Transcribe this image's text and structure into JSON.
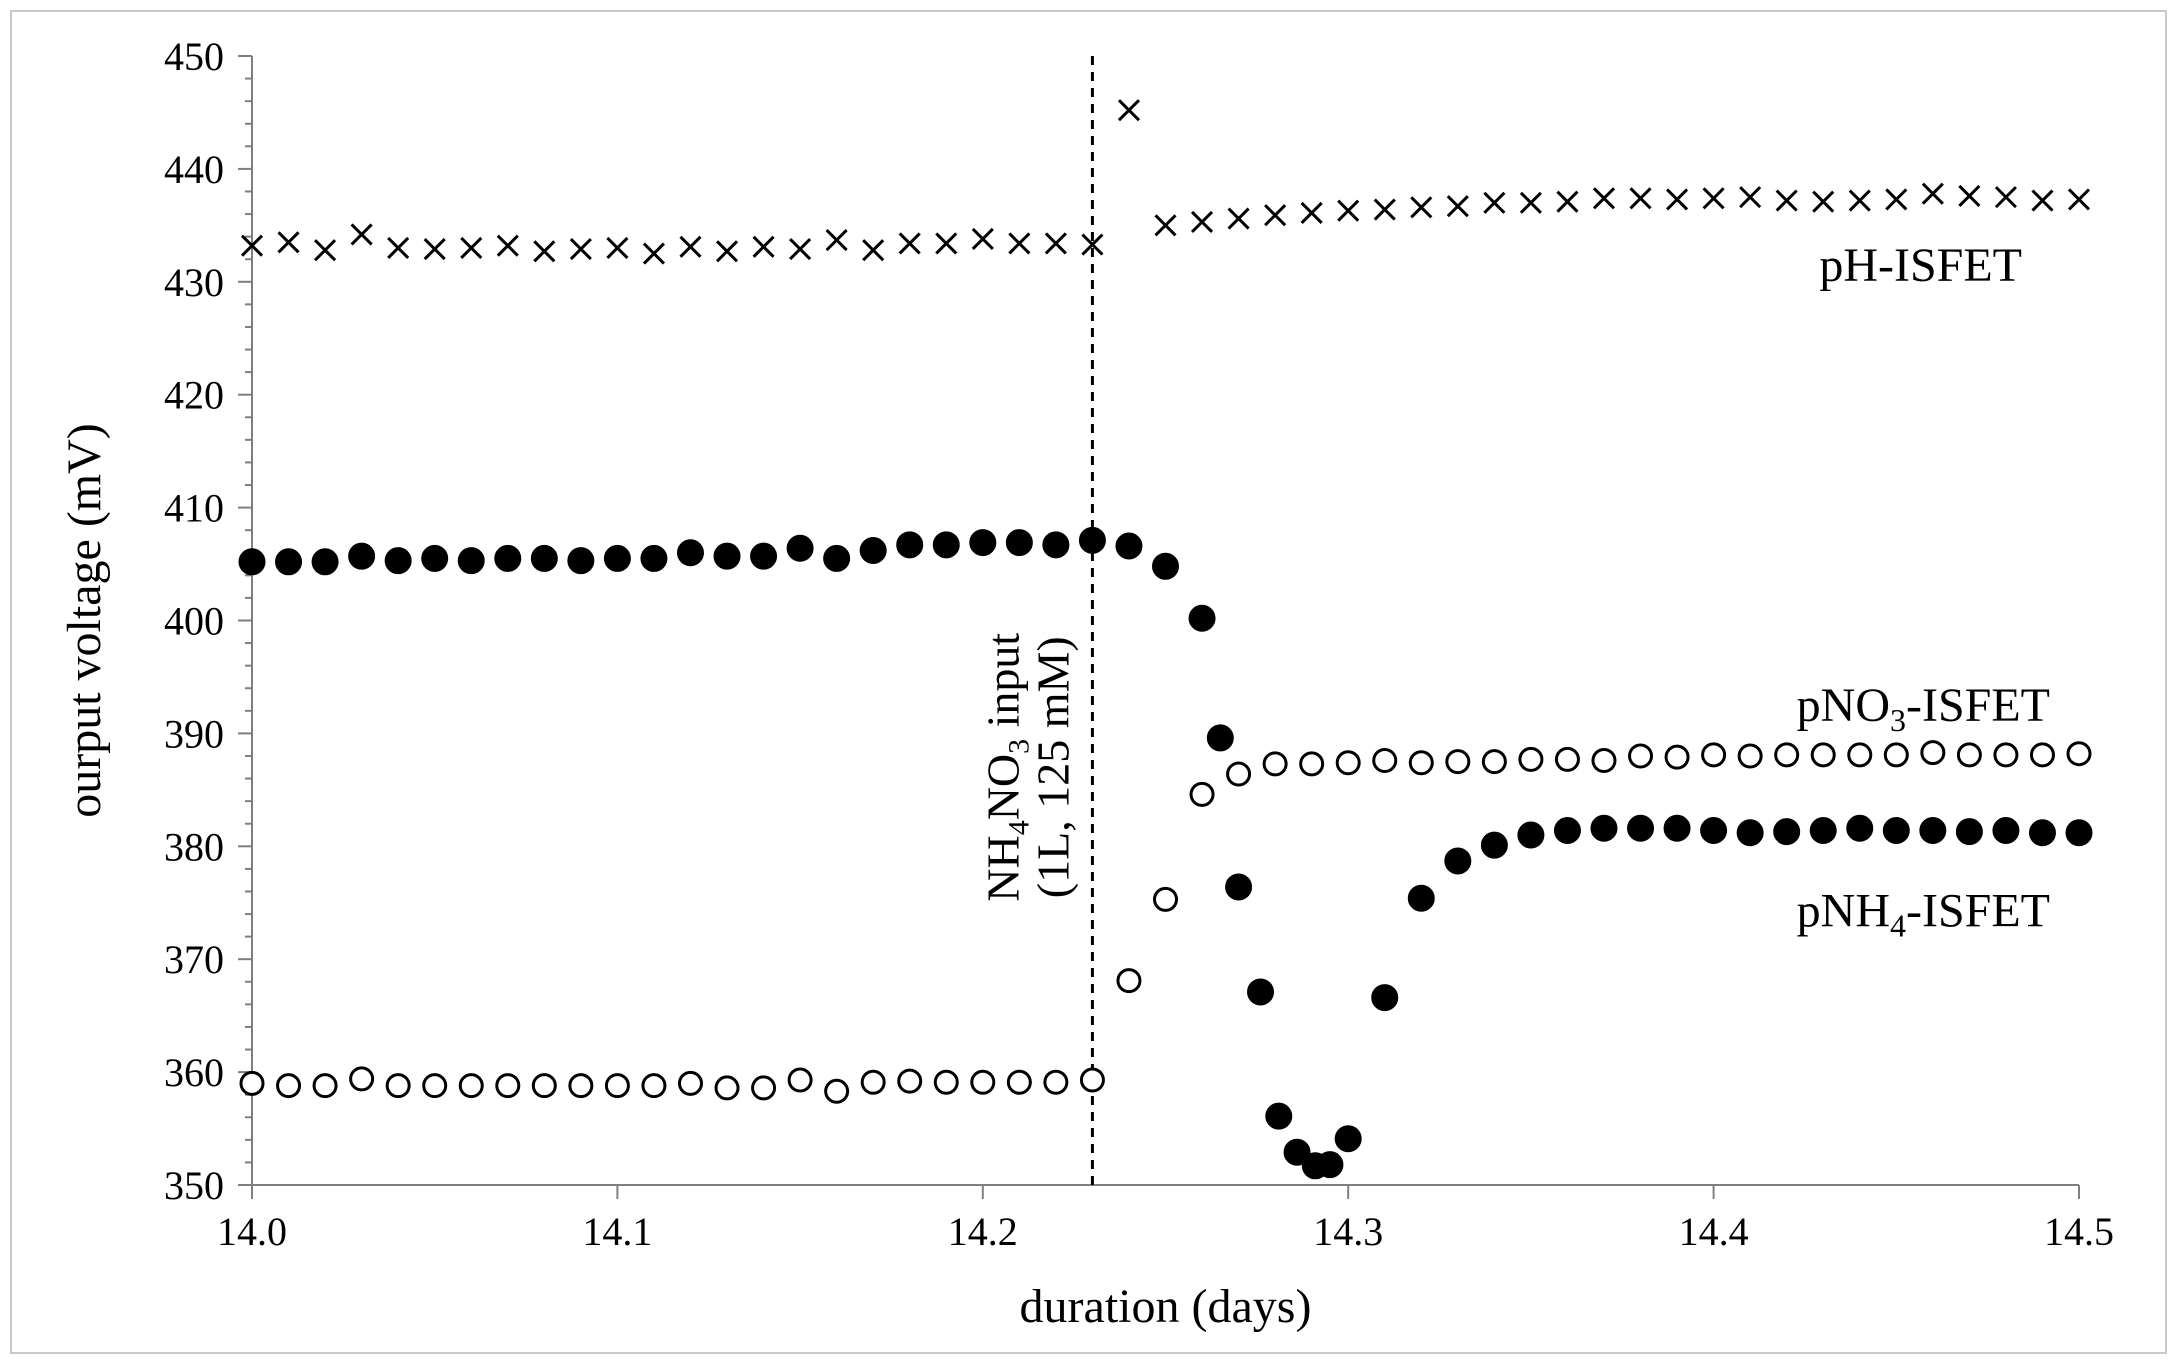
{
  "chart_data": {
    "type": "scatter",
    "title": "",
    "xlabel": "duration (days)",
    "ylabel": "ourput voltage (mV)",
    "xlim": [
      14.0,
      14.5
    ],
    "ylim": [
      350,
      450
    ],
    "x_ticks": [
      "14.0",
      "14.1",
      "14.2",
      "14.3",
      "14.4",
      "14.5"
    ],
    "y_ticks": [
      "350",
      "360",
      "370",
      "380",
      "390",
      "400",
      "410",
      "420",
      "430",
      "440",
      "450"
    ],
    "grid": false,
    "annotation": {
      "x": 14.23,
      "line1_pre": "NH",
      "line1_sub1": "4",
      "line1_mid": "NO",
      "line1_sub2": "3",
      "line1_post": " input",
      "line2": "(1L, 125 mM)"
    },
    "series": [
      {
        "name": "pH-ISFET",
        "label_pre": "pH-ISFET",
        "label_sub": "",
        "label_post": "",
        "marker": "x",
        "x": [
          14.0,
          14.01,
          14.02,
          14.03,
          14.04,
          14.05,
          14.06,
          14.07,
          14.08,
          14.09,
          14.1,
          14.11,
          14.12,
          14.13,
          14.14,
          14.15,
          14.16,
          14.17,
          14.18,
          14.19,
          14.2,
          14.21,
          14.22,
          14.23,
          14.24,
          14.25,
          14.26,
          14.27,
          14.28,
          14.29,
          14.3,
          14.31,
          14.32,
          14.33,
          14.34,
          14.35,
          14.36,
          14.37,
          14.38,
          14.39,
          14.4,
          14.41,
          14.42,
          14.43,
          14.44,
          14.45,
          14.46,
          14.47,
          14.48,
          14.49,
          14.5
        ],
        "y": [
          433.2,
          433.5,
          432.8,
          434.2,
          433.0,
          432.9,
          433.0,
          433.2,
          432.7,
          432.9,
          433.0,
          432.5,
          433.1,
          432.7,
          433.1,
          432.9,
          433.7,
          432.8,
          433.4,
          433.4,
          433.8,
          433.4,
          433.4,
          433.3,
          445.2,
          435.0,
          435.3,
          435.6,
          435.9,
          436.1,
          436.3,
          436.4,
          436.6,
          436.7,
          437.0,
          437.0,
          437.1,
          437.4,
          437.4,
          437.3,
          437.4,
          437.5,
          437.2,
          437.1,
          437.2,
          437.3,
          437.8,
          437.6,
          437.5,
          437.2,
          437.3
        ]
      },
      {
        "name": "pNO3-ISFET",
        "label_pre": "pNO",
        "label_sub": "3",
        "label_post": "-ISFET",
        "marker": "circle-open",
        "x": [
          14.0,
          14.01,
          14.02,
          14.03,
          14.04,
          14.05,
          14.06,
          14.07,
          14.08,
          14.09,
          14.1,
          14.11,
          14.12,
          14.13,
          14.14,
          14.15,
          14.16,
          14.17,
          14.18,
          14.19,
          14.2,
          14.21,
          14.22,
          14.23,
          14.24,
          14.25,
          14.26,
          14.27,
          14.28,
          14.29,
          14.3,
          14.31,
          14.32,
          14.33,
          14.34,
          14.35,
          14.36,
          14.37,
          14.38,
          14.39,
          14.4,
          14.41,
          14.42,
          14.43,
          14.44,
          14.45,
          14.46,
          14.47,
          14.48,
          14.49,
          14.5
        ],
        "y": [
          359.0,
          358.8,
          358.8,
          359.4,
          358.8,
          358.8,
          358.8,
          358.8,
          358.8,
          358.8,
          358.8,
          358.8,
          359.0,
          358.6,
          358.6,
          359.3,
          358.3,
          359.1,
          359.2,
          359.1,
          359.1,
          359.1,
          359.1,
          359.3,
          368.1,
          375.3,
          384.6,
          386.4,
          387.3,
          387.3,
          387.4,
          387.6,
          387.4,
          387.5,
          387.5,
          387.7,
          387.7,
          387.6,
          388.0,
          387.9,
          388.1,
          388.0,
          388.1,
          388.1,
          388.1,
          388.1,
          388.3,
          388.1,
          388.1,
          388.1,
          388.2
        ]
      },
      {
        "name": "pNH4-ISFET",
        "label_pre": "pNH",
        "label_sub": "4",
        "label_post": "-ISFET",
        "marker": "circle-filled",
        "x": [
          14.0,
          14.01,
          14.02,
          14.03,
          14.04,
          14.05,
          14.06,
          14.07,
          14.08,
          14.09,
          14.1,
          14.11,
          14.12,
          14.13,
          14.14,
          14.15,
          14.16,
          14.17,
          14.18,
          14.19,
          14.2,
          14.21,
          14.22,
          14.23,
          14.24,
          14.25,
          14.26,
          14.265,
          14.27,
          14.276,
          14.281,
          14.286,
          14.291,
          14.295,
          14.3,
          14.31,
          14.32,
          14.33,
          14.34,
          14.35,
          14.36,
          14.37,
          14.38,
          14.39,
          14.4,
          14.41,
          14.42,
          14.43,
          14.44,
          14.45,
          14.46,
          14.47,
          14.48,
          14.49,
          14.5
        ],
        "y": [
          405.2,
          405.2,
          405.2,
          405.7,
          405.3,
          405.5,
          405.3,
          405.5,
          405.5,
          405.3,
          405.5,
          405.5,
          406.0,
          405.7,
          405.7,
          406.4,
          405.5,
          406.2,
          406.7,
          406.7,
          406.9,
          406.9,
          406.7,
          407.1,
          406.6,
          404.8,
          400.2,
          389.6,
          376.4,
          367.1,
          356.1,
          352.9,
          351.7,
          351.8,
          354.1,
          366.6,
          375.4,
          378.7,
          380.1,
          381.0,
          381.4,
          381.6,
          381.6,
          381.6,
          381.4,
          381.2,
          381.3,
          381.4,
          381.6,
          381.4,
          381.4,
          381.3,
          381.4,
          381.2,
          381.2
        ]
      }
    ]
  }
}
